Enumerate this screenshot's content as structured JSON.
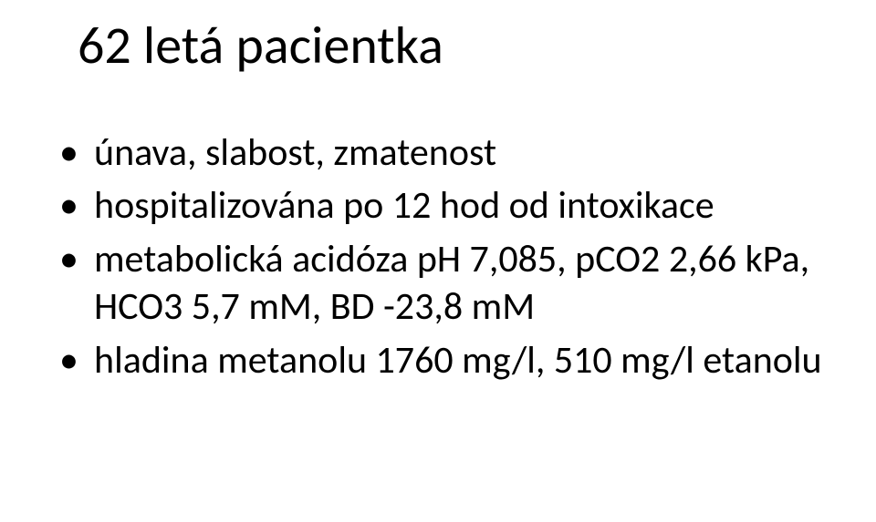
{
  "title": "62 letá pacientka",
  "bullets": [
    "únava, slabost, zmatenost",
    "hospitalizována po 12 hod od intoxikace",
    "metabolická acidóza pH 7,085, pCO2 2,66 kPa, HCO3 5,7 mM, BD -23,8 mM",
    "hladina metanolu 1760 mg/l, 510 mg/l etanolu"
  ]
}
